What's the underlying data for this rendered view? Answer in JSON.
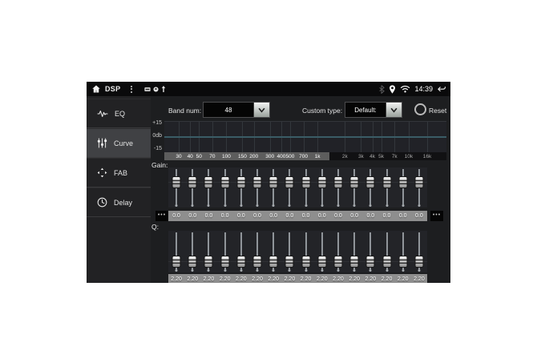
{
  "status_bar": {
    "title": "DSP",
    "time": "14:39"
  },
  "sidebar": {
    "items": [
      {
        "label": "EQ",
        "selected": false
      },
      {
        "label": "Curve",
        "selected": true
      },
      {
        "label": "FAB",
        "selected": false
      },
      {
        "label": "Delay",
        "selected": false
      }
    ]
  },
  "controls": {
    "band_num_label": "Band num:",
    "band_num_value": "48",
    "custom_type_label": "Custom type:",
    "custom_type_value": "Default:",
    "reset_label": "Reset"
  },
  "graph": {
    "y_axis_labels": [
      "+15",
      "0db",
      "-15"
    ],
    "curve_value_db": 0,
    "freq_ticks": [
      {
        "label": "30",
        "f": 30
      },
      {
        "label": "40",
        "f": 40
      },
      {
        "label": "50",
        "f": 50
      },
      {
        "label": "70",
        "f": 70
      },
      {
        "label": "100",
        "f": 100
      },
      {
        "label": "150",
        "f": 150
      },
      {
        "label": "200",
        "f": 200
      },
      {
        "label": "300",
        "f": 300
      },
      {
        "label": "400",
        "f": 400
      },
      {
        "label": "500",
        "f": 500
      },
      {
        "label": "700",
        "f": 700
      },
      {
        "label": "1k",
        "f": 1000
      },
      {
        "label": "2k",
        "f": 2000
      },
      {
        "label": "3k",
        "f": 3000
      },
      {
        "label": "4k",
        "f": 4000
      },
      {
        "label": "5k",
        "f": 5000
      },
      {
        "label": "7k",
        "f": 7000
      },
      {
        "label": "10k",
        "f": 10000
      },
      {
        "label": "16k",
        "f": 16000
      }
    ],
    "accent_line_color": "#3a5c66"
  },
  "gain": {
    "label": "Gain:",
    "values": [
      "0.0",
      "0.0",
      "0.0",
      "0.0",
      "0.0",
      "0.0",
      "0.0",
      "0.0",
      "0.0",
      "0.0",
      "0.0",
      "0.0",
      "0.0",
      "0.0",
      "0.0",
      "0.0"
    ]
  },
  "q": {
    "label": "Q:",
    "values": [
      "2.20",
      "2.20",
      "2.20",
      "2.20",
      "2.20",
      "2.20",
      "2.20",
      "2.20",
      "2.20",
      "2.20",
      "2.20",
      "2.20",
      "2.20",
      "2.20",
      "2.20",
      "2.20"
    ]
  },
  "scroll": {
    "more_symbol": "•••"
  }
}
